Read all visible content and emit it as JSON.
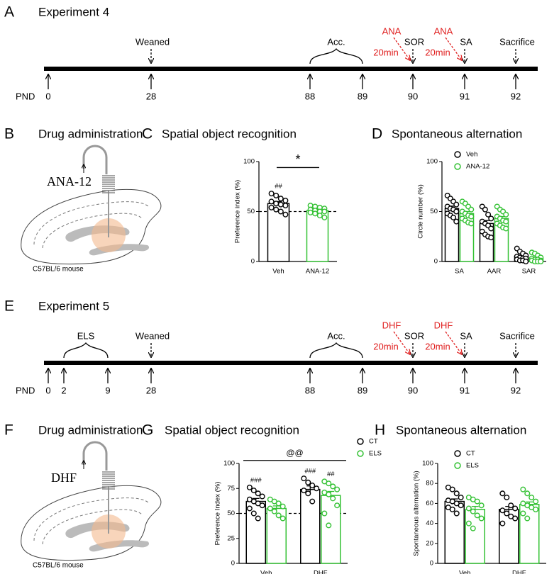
{
  "timelines": [
    {
      "panel": "A",
      "title": "Experiment 4",
      "axis_label": "PND",
      "days": [
        0,
        28,
        88,
        89,
        90,
        91,
        92
      ],
      "events": [
        "Weaned",
        "Acc.",
        "SOR",
        "SA",
        "Sacrifice"
      ],
      "drugs": [
        "ANA",
        "ANA"
      ],
      "intervals": [
        "20min",
        "20min"
      ]
    },
    {
      "panel": "E",
      "title": "Experiment 5",
      "axis_label": "PND",
      "days": [
        0,
        2,
        9,
        28,
        88,
        89,
        90,
        91,
        92
      ],
      "events": [
        "ELS",
        "Weaned",
        "Acc.",
        "SOR",
        "SA",
        "Sacrifice"
      ],
      "drugs": [
        "DHF",
        "DHF"
      ],
      "intervals": [
        "20min",
        "20min"
      ]
    }
  ],
  "drug_panels": [
    {
      "panel": "B",
      "title": "Drug administration",
      "drug": "ANA-12",
      "strain": "C57BL/6 mouse"
    },
    {
      "panel": "F",
      "title": "Drug administration",
      "drug": "DHF",
      "strain": "C57BL/6 mouse"
    }
  ],
  "chart_data": [
    {
      "type": "bar",
      "panel": "C",
      "title": "Spatial object recognition",
      "ylabel": "Preference index (%)",
      "categories": [
        "Veh",
        "ANA-12"
      ],
      "colors": [
        "#000000",
        "#33c133"
      ],
      "values": [
        58,
        51
      ],
      "errors": [
        2,
        1.5
      ],
      "points": [
        [
          68,
          66,
          63,
          61,
          60,
          58,
          57,
          56,
          54,
          52,
          50,
          47
        ],
        [
          56,
          55,
          54,
          53,
          52,
          51,
          50,
          50,
          49,
          48,
          46,
          44
        ]
      ],
      "annotations": [
        "##",
        null
      ],
      "comparison": "*",
      "reference_line": 50,
      "ylim": [
        0,
        100
      ],
      "yticks": [
        0,
        50,
        100
      ]
    },
    {
      "type": "bar",
      "panel": "D",
      "title": "Spontaneous alternation",
      "ylabel": "Circle number (%)",
      "categories": [
        "SA",
        "AAR",
        "SAR"
      ],
      "legend": "top-left",
      "series": [
        {
          "name": "Veh",
          "color": "#000000",
          "values": [
            53,
            38,
            5
          ],
          "errors": [
            2.5,
            3,
            1.2
          ],
          "points": [
            [
              66,
              63,
              60,
              57,
              55,
              53,
              52,
              50,
              48,
              46,
              44,
              40
            ],
            [
              55,
              52,
              47,
              43,
              40,
              38,
              36,
              33,
              30,
              27,
              25,
              24
            ],
            [
              13,
              10,
              8,
              6,
              5,
              4,
              3,
              3,
              2,
              1,
              1,
              0
            ]
          ]
        },
        {
          "name": "ANA-12",
          "color": "#33c133",
          "values": [
            48,
            43,
            3
          ],
          "errors": [
            2,
            2,
            1
          ],
          "points": [
            [
              60,
              58,
              55,
              52,
              50,
              48,
              46,
              45,
              43,
              41,
              39,
              38
            ],
            [
              55,
              52,
              50,
              47,
              45,
              43,
              41,
              40,
              38,
              36,
              34,
              33
            ],
            [
              9,
              8,
              6,
              4,
              3,
              2,
              2,
              1,
              1,
              0,
              0,
              0
            ]
          ]
        }
      ],
      "ylim": [
        0,
        100
      ],
      "yticks": [
        0,
        50,
        100
      ]
    },
    {
      "type": "bar",
      "panel": "G",
      "title": "Spatial object recognition",
      "ylabel": "Preference Index (%)",
      "categories": [
        "Veh",
        "DHF"
      ],
      "legend": "outside-right",
      "comparison": "@@",
      "reference_line": 50,
      "series": [
        {
          "name": "CT",
          "color": "#000000",
          "values": [
            62,
            74
          ],
          "errors": [
            3,
            3.5
          ],
          "annotations": [
            "###",
            "###"
          ],
          "points": [
            [
              76,
              73,
              70,
              67,
              64,
              62,
              60,
              58,
              55,
              50,
              45
            ],
            [
              85,
              81,
              78,
              75,
              73,
              70,
              62
            ]
          ]
        },
        {
          "name": "ELS",
          "color": "#33c133",
          "values": [
            55,
            68
          ],
          "errors": [
            2.5,
            4
          ],
          "annotations": [
            null,
            "##"
          ],
          "points": [
            [
              64,
              62,
              60,
              57,
              55,
              52,
              48,
              45
            ],
            [
              82,
              80,
              77,
              74,
              71,
              69,
              65,
              58,
              50,
              38
            ]
          ]
        }
      ],
      "ylim": [
        0,
        100
      ],
      "yticks": [
        0,
        25,
        50,
        75,
        100
      ]
    },
    {
      "type": "bar",
      "panel": "H",
      "title": "Spontaneous alternation",
      "ylabel": "Spontaneous alternation (%)",
      "categories": [
        "Veh",
        "DHF"
      ],
      "legend": "top-left",
      "series": [
        {
          "name": "CT",
          "color": "#000000",
          "values": [
            62,
            54
          ],
          "errors": [
            2.5,
            3
          ],
          "points": [
            [
              76,
              74,
              70,
              66,
              63,
              62,
              60,
              58,
              56,
              54,
              50
            ],
            [
              70,
              66,
              58,
              55,
              53,
              50,
              47,
              45,
              40
            ]
          ]
        },
        {
          "name": "ELS",
          "color": "#33c133",
          "values": [
            54,
            59
          ],
          "errors": [
            3,
            2.5
          ],
          "points": [
            [
              66,
              64,
              62,
              58,
              55,
              52,
              48,
              45,
              40,
              35
            ],
            [
              74,
              70,
              66,
              62,
              60,
              58,
              56,
              54,
              50,
              45
            ]
          ]
        }
      ],
      "ylim": [
        0,
        100
      ],
      "yticks": [
        0,
        20,
        40,
        60,
        80,
        100
      ]
    }
  ]
}
